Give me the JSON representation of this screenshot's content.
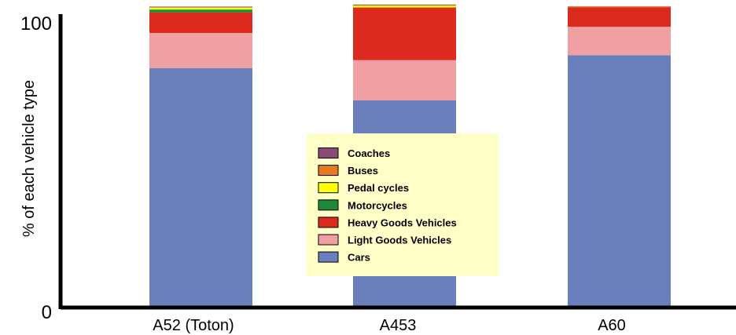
{
  "chart_data": {
    "type": "bar",
    "stacked": true,
    "title": "",
    "xlabel": "",
    "ylabel": "% of each vehicle type",
    "ylim": [
      0,
      100
    ],
    "y_ticks": [
      "0",
      "100"
    ],
    "categories": [
      "A52 (Toton)",
      "A453",
      "A60"
    ],
    "series": [
      {
        "name": "Cars",
        "color": "#6a7fbb",
        "values": [
          81.3,
          70.3,
          85.7
        ]
      },
      {
        "name": "Light Goods Vehicles",
        "color": "#f0a0a3",
        "values": [
          12.0,
          13.7,
          9.7
        ]
      },
      {
        "name": "Heavy Goods Vehicles",
        "color": "#dd2a1f",
        "values": [
          7.0,
          18.0,
          6.7
        ]
      },
      {
        "name": "Motorcycles",
        "color": "#1f8a3a",
        "values": [
          1.0,
          0.0,
          0.0
        ]
      },
      {
        "name": "Pedal cycles",
        "color": "#ffff00",
        "values": [
          0.7,
          0.7,
          0.0
        ]
      },
      {
        "name": "Buses",
        "color": "#e67a1e",
        "values": [
          0.0,
          0.0,
          0.3
        ]
      },
      {
        "name": "Coaches",
        "color": "#8c4a73",
        "values": [
          0.3,
          0.3,
          0.0
        ]
      }
    ],
    "legend": {
      "placement": "center",
      "order": [
        "Coaches",
        "Buses",
        "Pedal cycles",
        "Motorcycles",
        "Heavy Goods Vehicles",
        "Light Goods Vehicles",
        "Cars"
      ],
      "background": "#ffffc8"
    },
    "grid": false
  }
}
